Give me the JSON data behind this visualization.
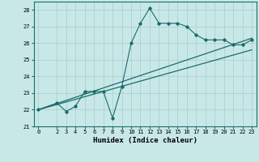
{
  "title": "",
  "xlabel": "Humidex (Indice chaleur)",
  "ylabel": "",
  "xlim": [
    -0.5,
    23.5
  ],
  "ylim": [
    21,
    28.5
  ],
  "xticks": [
    0,
    2,
    3,
    4,
    5,
    6,
    7,
    8,
    9,
    10,
    11,
    12,
    13,
    14,
    15,
    16,
    17,
    18,
    19,
    20,
    21,
    22,
    23
  ],
  "yticks": [
    21,
    22,
    23,
    24,
    25,
    26,
    27,
    28
  ],
  "data_x": [
    0,
    2,
    3,
    4,
    5,
    6,
    7,
    8,
    9,
    10,
    11,
    12,
    13,
    14,
    15,
    16,
    17,
    18,
    19,
    20,
    21,
    22,
    23
  ],
  "data_y": [
    22.0,
    22.4,
    21.9,
    22.2,
    23.1,
    23.1,
    23.1,
    21.5,
    23.4,
    26.0,
    27.2,
    28.1,
    27.2,
    27.2,
    27.2,
    27.0,
    26.5,
    26.2,
    26.2,
    26.2,
    25.9,
    25.9,
    26.2
  ],
  "trend1_x": [
    0,
    23
  ],
  "trend1_y": [
    22.0,
    26.3
  ],
  "trend2_x": [
    0,
    23
  ],
  "trend2_y": [
    22.0,
    25.6
  ],
  "color": "#1a6b6b",
  "bg_color": "#c8e8e8",
  "grid_color": "#aacccc",
  "tick_fontsize": 5,
  "label_fontsize": 6.5
}
